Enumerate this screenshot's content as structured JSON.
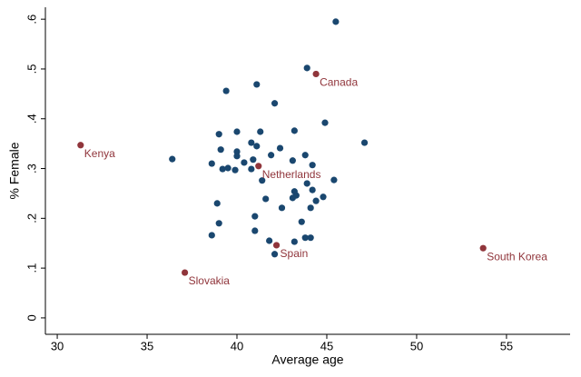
{
  "chart_data": {
    "type": "scatter",
    "x_label": "Average age",
    "y_label": "% Female",
    "xlim": [
      29.34,
      58.54
    ],
    "ylim": [
      -0.033,
      0.624
    ],
    "xticks": [
      30,
      35,
      40,
      45,
      50,
      55
    ],
    "yticks": [
      0,
      {
        "value": 0.1,
        "label": ".1"
      },
      {
        "value": 0.2,
        "label": ".2"
      },
      {
        "value": 0.3,
        "label": ".3"
      },
      {
        "value": 0.4,
        "label": ".4"
      },
      {
        "value": 0.5,
        "label": ".5"
      },
      {
        "value": 0.6,
        "label": ".6"
      }
    ],
    "series": [
      {
        "color": "#1a476f",
        "x": [
          45.5,
          43.9,
          41.1,
          39.4,
          42.1,
          44.9,
          47.1,
          43.2,
          40.0,
          39.0,
          41.3,
          40.8,
          41.1,
          42.4,
          39.1,
          40.0,
          40.0,
          41.9,
          43.8,
          36.4,
          40.9,
          43.1,
          40.4,
          38.6,
          44.2,
          39.2,
          39.5,
          39.9,
          40.8,
          41.4,
          45.4,
          43.9,
          44.2,
          43.2,
          41.6,
          43.3,
          43.1,
          44.8,
          44.4,
          38.9,
          42.5,
          44.1,
          41.0,
          43.6,
          39.0,
          41.0,
          38.6,
          41.8,
          43.8,
          44.1,
          43.2,
          42.1
        ],
        "y": [
          0.595,
          0.502,
          0.469,
          0.456,
          0.431,
          0.392,
          0.352,
          0.376,
          0.374,
          0.369,
          0.374,
          0.352,
          0.345,
          0.341,
          0.338,
          0.334,
          0.325,
          0.327,
          0.327,
          0.319,
          0.318,
          0.316,
          0.312,
          0.31,
          0.307,
          0.299,
          0.301,
          0.297,
          0.299,
          0.276,
          0.277,
          0.27,
          0.257,
          0.254,
          0.239,
          0.246,
          0.241,
          0.243,
          0.235,
          0.23,
          0.221,
          0.221,
          0.204,
          0.193,
          0.19,
          0.175,
          0.166,
          0.155,
          0.161,
          0.161,
          0.153,
          0.128
        ]
      },
      {
        "color": "#90353b",
        "x": [
          31.3,
          44.4,
          41.2,
          42.2,
          37.1,
          53.7
        ],
        "y": [
          0.347,
          0.49,
          0.305,
          0.146,
          0.091,
          0.14
        ],
        "labels": [
          "Kenya",
          "Canada",
          "Netherlands",
          "Spain",
          "Slovakia",
          "South Korea"
        ]
      }
    ]
  }
}
